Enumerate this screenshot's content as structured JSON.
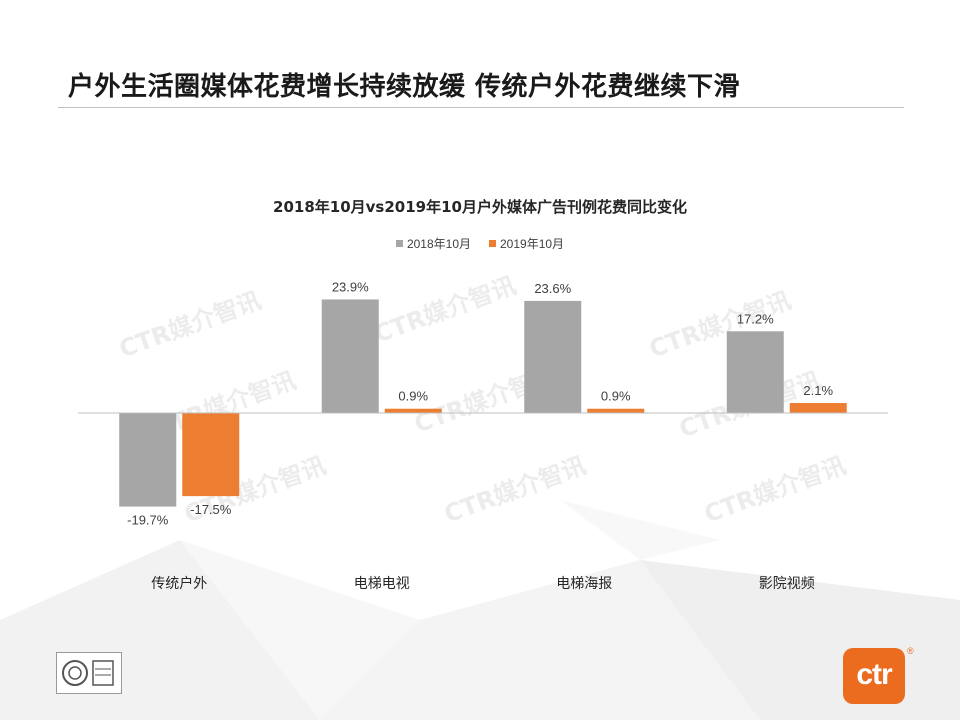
{
  "slide": {
    "title": "户外生活圈媒体花费增长持续放缓 传统户外花费继续下滑",
    "watermark_text": "CTR媒介智讯",
    "logo_text": "ctr",
    "logo_reg_mark": "®"
  },
  "colors": {
    "series_2018": "#a6a6a6",
    "series_2019": "#ed7d31",
    "logo": "#ec6c1f"
  },
  "chart_data": {
    "type": "bar",
    "title": "2018年10月vs2019年10月户外媒体广告刊例花费同比变化",
    "categories": [
      "传统户外",
      "电梯电视",
      "电梯海报",
      "影院视频"
    ],
    "series": [
      {
        "name": "2018年10月",
        "values": [
          -19.7,
          23.9,
          23.6,
          17.2
        ],
        "labels": [
          "-19.7%",
          "23.9%",
          "23.6%",
          "17.2%"
        ]
      },
      {
        "name": "2019年10月",
        "values": [
          -17.5,
          0.9,
          0.9,
          2.1
        ],
        "labels": [
          "-17.5%",
          "0.9%",
          "0.9%",
          "2.1%"
        ]
      }
    ],
    "ylim": [
      -25,
      25
    ],
    "unit": "%",
    "legend_position": "top-center",
    "grid": false
  }
}
